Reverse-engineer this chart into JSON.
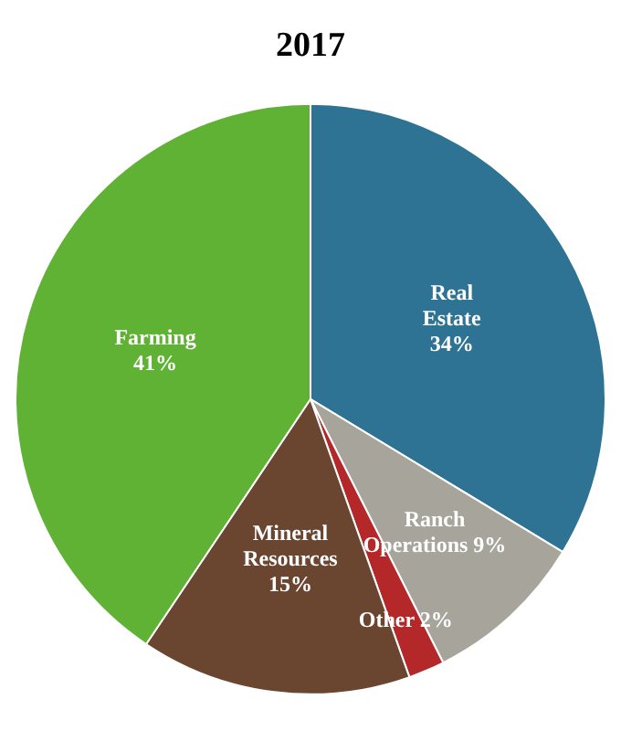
{
  "chart_data": {
    "type": "pie",
    "title": "2017",
    "categories": [
      "Real Estate",
      "Ranch Operations",
      "Other",
      "Mineral Resources",
      "Farming"
    ],
    "values": [
      34,
      9,
      2,
      15,
      41
    ],
    "colors": [
      "#2e7393",
      "#a6a49b",
      "#b5282a",
      "#6a4530",
      "#5fb234"
    ],
    "value_labels": [
      "34%",
      "9%",
      "2%",
      "15%",
      "41%"
    ],
    "legend": false
  }
}
